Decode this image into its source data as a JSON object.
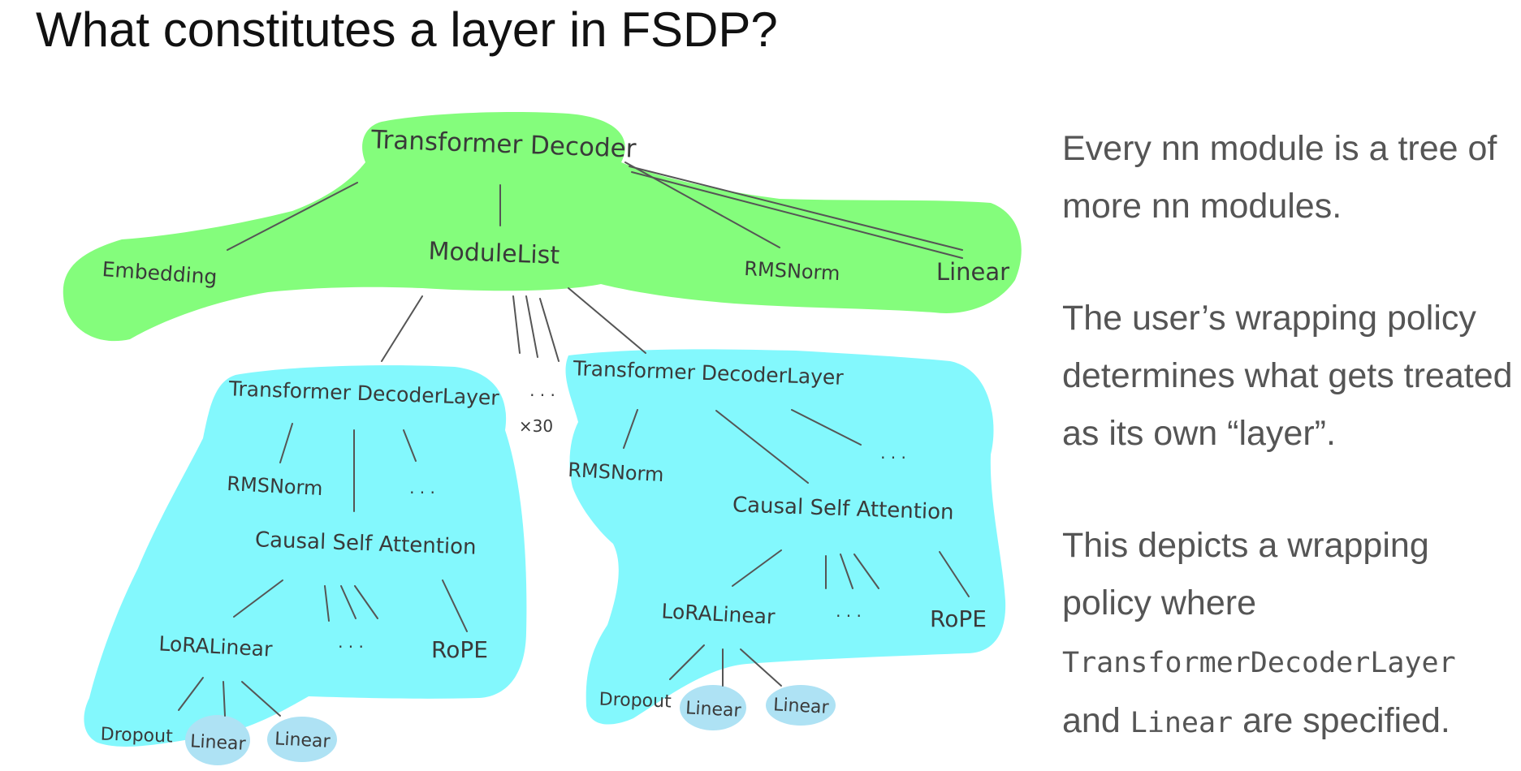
{
  "slide": {
    "title": "What constitutes a layer in FSDP?"
  },
  "colors": {
    "unit_green": "#84fd7c",
    "unit_cyan": "#83f8fd",
    "leaf_blue": "#aee2f4",
    "ink": "#3a3a3a",
    "body_text": "#555555"
  },
  "diagram": {
    "root": "Transformer Decoder",
    "embedding": "Embedding",
    "module_list": "ModuleList",
    "rmsnorm_top": "RMSNorm",
    "linear_top": "Linear",
    "repeat_dots": ". . .",
    "repeat_count": "×30",
    "left_layer": {
      "title": "Transformer DecoderLayer",
      "rmsnorm": "RMSNorm",
      "ellipsis": ". . .",
      "attention": "Causal Self Attention",
      "lora": "LoRALinear",
      "lora_ellipsis": ". . .",
      "rope": "RoPE",
      "dropout": "Dropout",
      "linear_a": "Linear",
      "linear_b": "Linear"
    },
    "right_layer": {
      "title": "Transformer DecoderLayer",
      "rmsnorm": "RMSNorm",
      "ellipsis": ". . .",
      "attention": "Causal Self Attention",
      "lora": "LoRALinear",
      "lora_ellipsis": ". . .",
      "rope": "RoPE",
      "dropout": "Dropout",
      "linear_a": "Linear",
      "linear_b": "Linear"
    }
  },
  "text": {
    "p1": "Every nn module is a tree of more nn modules.",
    "p2": "The user’s wrapping policy determines what gets treated as its own “layer”.",
    "p3_line1": "This depicts a wrapping",
    "p3_line2": "policy where",
    "p3_code1": "TransformerDecoderLayer",
    "p3_and": "and ",
    "p3_code2": "Linear",
    "p3_end": " are specified."
  }
}
